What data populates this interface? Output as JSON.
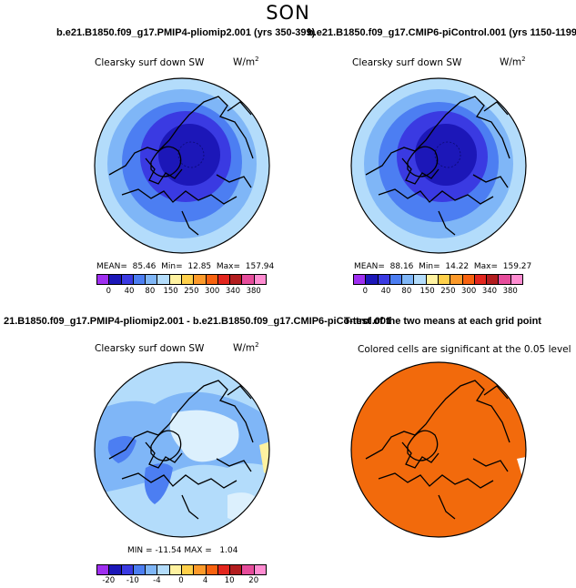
{
  "season": "SON",
  "panels": [
    {
      "title": "b.e21.B1850.f09_g17.PMIP4-pliomip2.001 (yrs 350-399)",
      "variable": "Clearsky surf down SW",
      "units_base": "W/m",
      "units_exp": "2",
      "stats": {
        "mean_label": "MEAN=",
        "mean": "85.46",
        "min_label": "Min=",
        "min": "12.85",
        "max_label": "Max=",
        "max": "157.94"
      },
      "colorbar": {
        "colors": [
          "#9f2ff0",
          "#1c17b8",
          "#3a3ae2",
          "#4c7ef2",
          "#7fb6f7",
          "#b3dcfb",
          "#fff2a0",
          "#ffd04a",
          "#fd9a2a",
          "#f8620f",
          "#e3261e",
          "#b31d1f",
          "#e64c9b",
          "#ff8cd1"
        ],
        "ticks": [
          "0",
          "40",
          "80",
          "150",
          "250",
          "300",
          "340",
          "380"
        ]
      }
    },
    {
      "title": "b.e21.B1850.f09_g17.CMIP6-piControl.001 (yrs 1150-1199)",
      "variable": "Clearsky surf down SW",
      "units_base": "W/m",
      "units_exp": "2",
      "stats": {
        "mean_label": "MEAN=",
        "mean": "88.16",
        "min_label": "Min=",
        "min": "14.22",
        "max_label": "Max=",
        "max": "159.27"
      },
      "colorbar": {
        "colors": [
          "#9f2ff0",
          "#1c17b8",
          "#3a3ae2",
          "#4c7ef2",
          "#7fb6f7",
          "#b3dcfb",
          "#fff2a0",
          "#ffd04a",
          "#fd9a2a",
          "#f8620f",
          "#e3261e",
          "#b31d1f",
          "#e64c9b",
          "#ff8cd1"
        ],
        "ticks": [
          "0",
          "40",
          "80",
          "150",
          "250",
          "300",
          "340",
          "380"
        ]
      }
    },
    {
      "title": "21.B1850.f09_g17.PMIP4-pliomip2.001 - b.e21.B1850.f09_g17.CMIP6-piControl.001",
      "variable": "Clearsky surf down SW",
      "units_base": "W/m",
      "units_exp": "2",
      "stats": {
        "min_label": "MIN =",
        "min": "-11.54",
        "max_label": "MAX =",
        "max": "1.04"
      },
      "colorbar": {
        "colors": [
          "#9f2ff0",
          "#1c17b8",
          "#3a3ae2",
          "#4c7ef2",
          "#7fb6f7",
          "#b3dcfb",
          "#fff2a0",
          "#ffd04a",
          "#fd9a2a",
          "#f8620f",
          "#e3261e",
          "#b31d1f",
          "#e64c9b",
          "#ff8cd1"
        ],
        "ticks": [
          "-20",
          "-10",
          "-4",
          "0",
          "4",
          "10",
          "20"
        ]
      }
    },
    {
      "title": "T-test of the two means at each grid point",
      "variable": "Colored cells are significant at the 0.05 level",
      "fill_color": "#f26a0c"
    }
  ]
}
